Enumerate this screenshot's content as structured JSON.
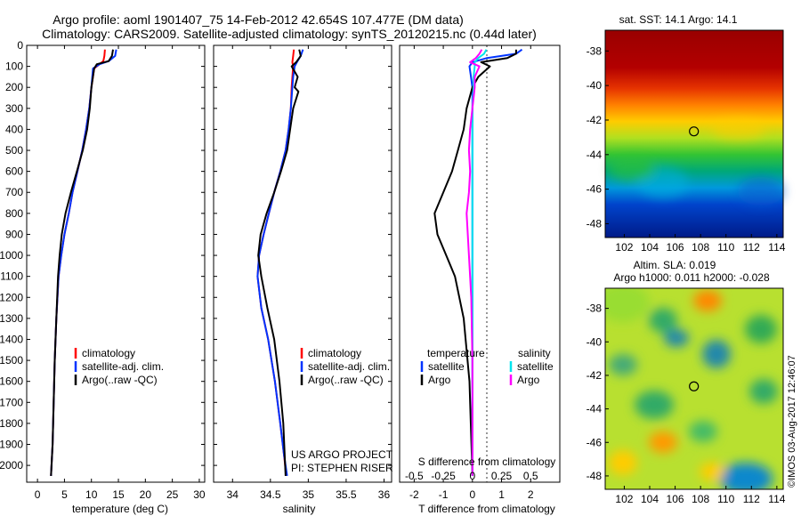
{
  "title": {
    "line1": "Argo profile: aoml 1901407_75 14-Feb-2012 42.654S 107.477E (DM data)",
    "line2": "Climatology: CARS2009. Satellite-adjusted climatology: synTS_20120215.nc (0.44d later)"
  },
  "colors": {
    "climatology": "#ff0000",
    "satellite": "#0033ff",
    "argo": "#000000",
    "sal_satellite": "#00e5ee",
    "sal_argo": "#ff00ff"
  },
  "chart_data": [
    {
      "type": "line",
      "panel": "temperature",
      "xlabel": "temperature (deg C)",
      "xlim": [
        -2,
        31
      ],
      "ylim": [
        0,
        2080
      ],
      "xticks": [
        0,
        5,
        10,
        15,
        20,
        25,
        30
      ],
      "yticks": [
        0,
        100,
        200,
        300,
        400,
        500,
        600,
        700,
        800,
        900,
        1000,
        1100,
        1200,
        1300,
        1400,
        1500,
        1600,
        1700,
        1800,
        1900,
        2000
      ],
      "legend": [
        "climatology",
        "satellite-adj. clim.",
        "Argo(..raw -QC)"
      ],
      "series": [
        {
          "name": "climatology",
          "x": [
            12.5,
            12.4,
            12.2,
            11.5,
            10.5,
            10.0,
            9.6,
            9.0,
            8.3,
            7.4,
            6.5,
            5.8,
            5.0,
            4.4,
            3.9,
            3.5,
            3.2,
            3.0,
            2.8,
            2.6,
            2.5
          ],
          "y": [
            20,
            50,
            75,
            90,
            110,
            200,
            300,
            400,
            500,
            600,
            700,
            800,
            900,
            1000,
            1100,
            1300,
            1500,
            1700,
            1900,
            2000,
            2050
          ]
        },
        {
          "name": "satellite-adj. clim.",
          "x": [
            14.6,
            14.4,
            13.2,
            11.5,
            10.3,
            10.0,
            9.6,
            9.0,
            8.3,
            7.4,
            6.5,
            5.8,
            5.0,
            4.4,
            3.9,
            3.5,
            3.2,
            3.0,
            2.8,
            2.6,
            2.5
          ],
          "y": [
            20,
            50,
            75,
            90,
            110,
            200,
            300,
            400,
            500,
            600,
            700,
            800,
            900,
            1000,
            1100,
            1300,
            1500,
            1700,
            1900,
            2000,
            2050
          ]
        },
        {
          "name": "Argo(..raw -QC)",
          "x": [
            14.0,
            13.8,
            13.2,
            11.0,
            10.5,
            10.0,
            9.7,
            9.2,
            8.4,
            7.3,
            6.2,
            5.2,
            4.5,
            4.1,
            3.8,
            3.5,
            3.2,
            3.0,
            2.8,
            2.6,
            2.5
          ],
          "y": [
            20,
            50,
            75,
            90,
            110,
            200,
            300,
            400,
            500,
            600,
            700,
            800,
            900,
            1000,
            1100,
            1300,
            1500,
            1700,
            1900,
            2000,
            2050
          ]
        }
      ]
    },
    {
      "type": "line",
      "panel": "salinity",
      "xlabel": "salinity",
      "xlim": [
        33.75,
        36.1
      ],
      "ylim": [
        0,
        2080
      ],
      "xticks": [
        34,
        34.5,
        35,
        35.5,
        36
      ],
      "xtick_labels": [
        "34",
        "34.5",
        "35",
        "35.5",
        "36"
      ],
      "legend": [
        "climatology",
        "satellite-adj. clim.",
        "Argo(..raw -QC)"
      ],
      "annotation": [
        "US ARGO PROJECT",
        "PI: STEPHEN RISER"
      ],
      "series": [
        {
          "name": "climatology",
          "x": [
            34.81,
            34.8,
            34.79,
            34.8,
            34.79,
            34.78,
            34.77,
            34.74,
            34.7,
            34.63,
            34.55,
            34.48,
            34.41,
            34.35,
            34.33,
            34.38,
            34.47,
            34.56,
            34.63,
            34.68,
            34.71
          ],
          "y": [
            20,
            50,
            80,
            100,
            150,
            200,
            300,
            400,
            500,
            600,
            700,
            800,
            900,
            1000,
            1100,
            1250,
            1400,
            1600,
            1800,
            1950,
            2050
          ]
        },
        {
          "name": "satellite-adj. clim.",
          "x": [
            34.93,
            34.9,
            34.85,
            34.82,
            34.8,
            34.79,
            34.77,
            34.74,
            34.7,
            34.63,
            34.55,
            34.48,
            34.41,
            34.35,
            34.33,
            34.38,
            34.47,
            34.56,
            34.63,
            34.68,
            34.72
          ],
          "y": [
            20,
            50,
            80,
            100,
            150,
            200,
            300,
            400,
            500,
            600,
            700,
            800,
            900,
            1000,
            1100,
            1250,
            1400,
            1600,
            1800,
            1950,
            2050
          ]
        },
        {
          "name": "Argo(..raw -QC)",
          "x": [
            34.88,
            34.9,
            34.84,
            34.78,
            34.86,
            34.82,
            34.87,
            34.8,
            34.76,
            34.72,
            34.64,
            34.55,
            34.45,
            34.37,
            34.34,
            34.38,
            34.46,
            34.55,
            34.62,
            34.67,
            34.7
          ],
          "y": [
            20,
            50,
            80,
            100,
            150,
            200,
            220,
            300,
            400,
            500,
            600,
            700,
            800,
            900,
            1000,
            1100,
            1250,
            1400,
            1600,
            1800,
            2050
          ]
        }
      ]
    },
    {
      "type": "line",
      "panel": "difference",
      "xlabel": "T difference from climatology",
      "xlabel_top": "S difference from climatology",
      "xlim": [
        -2.5,
        3.0
      ],
      "ylim": [
        0,
        2080
      ],
      "xticks": [
        -2,
        -1,
        0,
        1,
        2
      ],
      "xticks_s": [
        "-0.5",
        "-0.25",
        "0",
        "0.25",
        "0.5"
      ],
      "legend_temperature": {
        "title": "temperature",
        "items": [
          "satellite",
          "Argo"
        ]
      },
      "legend_salinity": {
        "title": "salinity",
        "items": [
          "satellite",
          "Argo"
        ]
      },
      "series": [
        {
          "name": "satellite",
          "x": [
            1.7,
            1.5,
            0.5,
            0.0,
            -0.1,
            -0.05,
            0.0,
            0.0,
            0.0,
            0.0,
            0.0,
            0.0,
            0.0,
            0.0,
            0.0,
            0.0,
            0.0,
            0.0,
            0.0
          ],
          "y": [
            20,
            40,
            60,
            80,
            100,
            150,
            200,
            300,
            400,
            500,
            600,
            700,
            800,
            900,
            1000,
            1200,
            1500,
            1800,
            2050
          ]
        },
        {
          "name": "Argo",
          "x": [
            1.5,
            1.5,
            1.2,
            0.3,
            0.6,
            0.2,
            0.0,
            -0.2,
            -0.3,
            -0.5,
            -0.7,
            -1.0,
            -1.3,
            -1.2,
            -0.9,
            -0.6,
            -0.3,
            -0.1,
            0.0
          ],
          "y": [
            20,
            40,
            60,
            80,
            100,
            150,
            200,
            300,
            400,
            500,
            600,
            700,
            800,
            900,
            1000,
            1100,
            1300,
            1600,
            2050
          ]
        },
        {
          "name": "satellite",
          "x": [
            0.12,
            0.1,
            0.05,
            0.02,
            0.02,
            0.01,
            0.01,
            0.0,
            0.0,
            0.0,
            0.0,
            0.0,
            0.0,
            0.0,
            0.0,
            0.0,
            0.0,
            0.0,
            0.0
          ],
          "y": [
            20,
            40,
            60,
            80,
            100,
            150,
            200,
            300,
            400,
            500,
            600,
            700,
            800,
            900,
            1000,
            1200,
            1500,
            1800,
            2050
          ]
        },
        {
          "name": "Argo",
          "x": [
            0.08,
            0.06,
            0.03,
            -0.02,
            0.06,
            0.02,
            0.02,
            0.0,
            -0.02,
            -0.03,
            -0.02,
            -0.03,
            -0.05,
            -0.04,
            -0.03,
            -0.01,
            0.0,
            0.0,
            0.0
          ],
          "y": [
            20,
            40,
            60,
            80,
            100,
            150,
            200,
            300,
            400,
            500,
            600,
            700,
            800,
            900,
            1000,
            1200,
            1500,
            1800,
            2050
          ]
        }
      ]
    },
    {
      "type": "heatmap",
      "panel": "sst-map",
      "title": "sat. SST: 14.1  Argo: 14.1",
      "xlim": [
        100.5,
        114.5
      ],
      "ylim": [
        -48.8,
        -36.8
      ],
      "xticks": [
        102,
        104,
        106,
        108,
        110,
        112,
        114
      ],
      "yticks": [
        -38,
        -40,
        -42,
        -44,
        -46,
        -48
      ],
      "marker": {
        "lon": 107.477,
        "lat": -42.654
      }
    },
    {
      "type": "heatmap",
      "panel": "sla-map",
      "title": [
        "Altim. SLA: 0.019",
        "Argo h1000: 0.011  h2000: -0.028"
      ],
      "xlim": [
        100.5,
        114.5
      ],
      "ylim": [
        -48.8,
        -36.8
      ],
      "xticks": [
        102,
        104,
        106,
        108,
        110,
        112,
        114
      ],
      "yticks": [
        -38,
        -40,
        -42,
        -44,
        -46,
        -48
      ],
      "marker": {
        "lon": 107.477,
        "lat": -42.654
      }
    }
  ],
  "credit": "©IMOS 03-Aug-2017 12:46:07"
}
